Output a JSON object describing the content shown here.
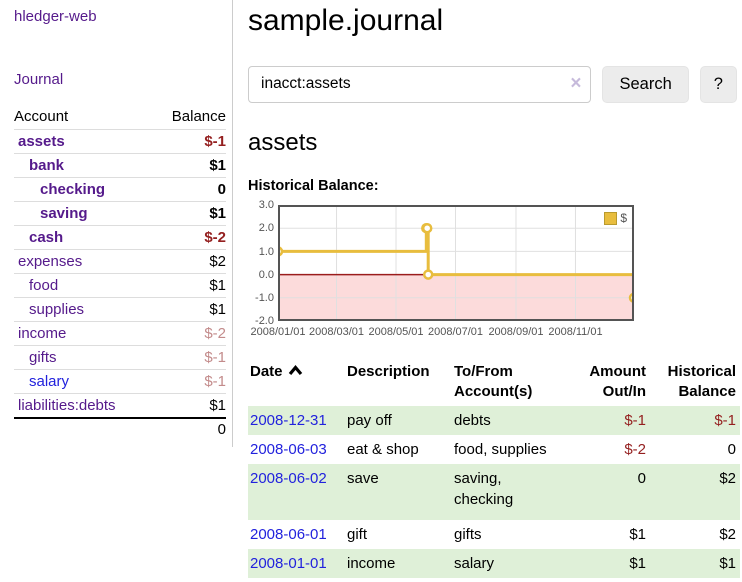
{
  "app": {
    "title": "hledger-web",
    "journal_nav": "Journal"
  },
  "sidebar": {
    "header": {
      "account": "Account",
      "balance": "Balance"
    },
    "accounts": [
      {
        "name": "assets",
        "balance": "$-1",
        "depth": 1,
        "bold": true,
        "balance_style": "neg",
        "link_style": "purple"
      },
      {
        "name": "bank",
        "balance": "$1",
        "depth": 2,
        "bold": true,
        "balance_style": "normal",
        "link_style": "purple"
      },
      {
        "name": "checking",
        "balance": "0",
        "depth": 3,
        "bold": true,
        "balance_style": "normal",
        "link_style": "purple"
      },
      {
        "name": "saving",
        "balance": "$1",
        "depth": 3,
        "bold": true,
        "balance_style": "normal",
        "link_style": "purple"
      },
      {
        "name": "cash",
        "balance": "$-2",
        "depth": 2,
        "bold": true,
        "balance_style": "neg",
        "link_style": "purple"
      },
      {
        "name": "expenses",
        "balance": "$2",
        "depth": 1,
        "bold": false,
        "balance_style": "normal",
        "link_style": "purple"
      },
      {
        "name": "food",
        "balance": "$1",
        "depth": 2,
        "bold": false,
        "balance_style": "normal",
        "link_style": "purple"
      },
      {
        "name": "supplies",
        "balance": "$1",
        "depth": 2,
        "bold": false,
        "balance_style": "normal",
        "link_style": "purple"
      },
      {
        "name": "income",
        "balance": "$-2",
        "depth": 1,
        "bold": false,
        "balance_style": "negmuted",
        "link_style": "purple"
      },
      {
        "name": "gifts",
        "balance": "$-1",
        "depth": 2,
        "bold": false,
        "balance_style": "negmuted",
        "link_style": "purple"
      },
      {
        "name": "salary",
        "balance": "$-1",
        "depth": 2,
        "bold": false,
        "balance_style": "negmuted",
        "link_style": "blue"
      },
      {
        "name": "liabilities:debts",
        "balance": "$1",
        "depth": 1,
        "bold": false,
        "balance_style": "normal",
        "link_style": "purple"
      }
    ],
    "total": "0"
  },
  "header": {
    "title": "sample.journal"
  },
  "search": {
    "value": "inacct:assets",
    "clear_icon": "×",
    "search_button": "Search",
    "help_button": "?"
  },
  "account_page": {
    "title": "assets",
    "chart_caption": "Historical Balance:"
  },
  "chart_data": {
    "type": "line",
    "title": "Historical Balance",
    "steps": true,
    "xlim": [
      "2008-01-01",
      "2008-12-31"
    ],
    "ylim": [
      -2,
      3
    ],
    "grid": true,
    "legend_position": "top-right",
    "legend_label": "$",
    "series": [
      {
        "name": "$",
        "color": "#e8bd3e",
        "points": [
          [
            "2008-01-01",
            1
          ],
          [
            "2008-06-01",
            2
          ],
          [
            "2008-06-02",
            2
          ],
          [
            "2008-06-03",
            0
          ],
          [
            "2008-12-31",
            -1
          ]
        ]
      }
    ],
    "yticks": [
      {
        "value": 3,
        "label": "3.0"
      },
      {
        "value": 2,
        "label": "2.0"
      },
      {
        "value": 1,
        "label": "1.0"
      },
      {
        "value": 0,
        "label": "0.0"
      },
      {
        "value": -1,
        "label": "-1.0"
      },
      {
        "value": -2,
        "label": "-2.0"
      }
    ],
    "xticks": [
      {
        "date": "2008-01-01",
        "label": "2008/01/01"
      },
      {
        "date": "2008-03-01",
        "label": "2008/03/01"
      },
      {
        "date": "2008-05-01",
        "label": "2008/05/01"
      },
      {
        "date": "2008-07-01",
        "label": "2008/07/01"
      },
      {
        "date": "2008-09-01",
        "label": "2008/09/01"
      },
      {
        "date": "2008-11-01",
        "label": "2008/11/01"
      }
    ],
    "negative_fill": "#fcdbdb",
    "zero_line_color": "#9b1c1c",
    "grid_color": "#e0e0e0",
    "border_color": "#545454"
  },
  "register": {
    "columns": [
      {
        "label": "Date",
        "sorted": true,
        "align": "left"
      },
      {
        "label": "Description",
        "sorted": false,
        "align": "left"
      },
      {
        "label": "To/From Account(s)",
        "sorted": false,
        "align": "left"
      },
      {
        "label": "Amount Out/In",
        "sorted": false,
        "align": "right"
      },
      {
        "label": "Historical Balance",
        "sorted": false,
        "align": "right"
      }
    ],
    "rows": [
      {
        "date": "2008-12-31",
        "description": "pay off",
        "accounts": [
          "debts"
        ],
        "amount": "$-1",
        "amount_style": "neg",
        "balance": "$-1",
        "balance_style": "neg"
      },
      {
        "date": "2008-06-03",
        "description": "eat & shop",
        "accounts": [
          "food, supplies"
        ],
        "amount": "$-2",
        "amount_style": "neg",
        "balance": "0",
        "balance_style": "normal"
      },
      {
        "date": "2008-06-02",
        "description": "save",
        "accounts": [
          "saving,",
          "checking"
        ],
        "amount": "0",
        "amount_style": "normal",
        "balance": "$2",
        "balance_style": "normal"
      },
      {
        "date": "2008-06-01",
        "description": "gift",
        "accounts": [
          "gifts"
        ],
        "amount": "$1",
        "amount_style": "normal",
        "balance": "$2",
        "balance_style": "normal"
      },
      {
        "date": "2008-01-01",
        "description": "income",
        "accounts": [
          "salary"
        ],
        "amount": "$1",
        "amount_style": "normal",
        "balance": "$1",
        "balance_style": "normal"
      }
    ]
  },
  "colors": {
    "link_purple": "#551a8b",
    "link_blue": "#2222dd",
    "negative": "#941f1f",
    "negative_muted": "#c38b8b",
    "row_stripe_green": "#dff0d8",
    "chart_gold": "#e8bd3e",
    "button_bg": "#ececec"
  }
}
